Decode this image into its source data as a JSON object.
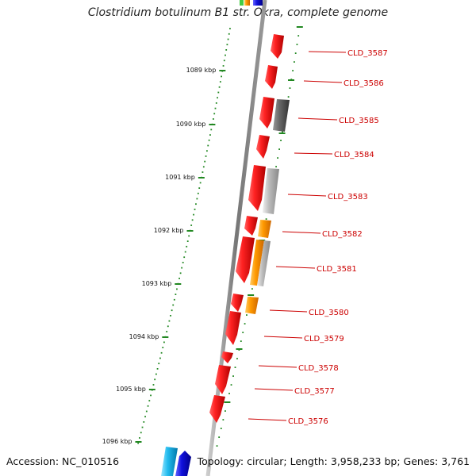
{
  "title": "Clostridium botulinum B1 str. Okra, complete genome",
  "footer": {
    "accession": "Accession: NC_010516",
    "summary": "Topology: circular; Length: 3,958,233 bp; Genes: 3,761"
  },
  "colors": {
    "gene_red": "#ee1111",
    "gene_orange": "#ff8800",
    "gene_gray": "#888888",
    "gene_darkgray": "#555555",
    "gene_cyan": "#22bbee",
    "gene_blue": "#1111cc",
    "tick_green": "#228822",
    "label_red": "#cc0000"
  },
  "kbp_ticks": [
    {
      "label": "1089 kbp"
    },
    {
      "label": "1090 kbp"
    },
    {
      "label": "1091 kbp"
    },
    {
      "label": "1092 kbp"
    },
    {
      "label": "1093 kbp"
    },
    {
      "label": "1094 kbp"
    },
    {
      "label": "1095 kbp"
    },
    {
      "label": "1096 kbp"
    }
  ],
  "gene_labels": [
    {
      "label": "CLD_3587"
    },
    {
      "label": "CLD_3586"
    },
    {
      "label": "CLD_3585"
    },
    {
      "label": "CLD_3584"
    },
    {
      "label": "CLD_3583"
    },
    {
      "label": "CLD_3582"
    },
    {
      "label": "CLD_3581"
    },
    {
      "label": "CLD_3580"
    },
    {
      "label": "CLD_3579"
    },
    {
      "label": "CLD_3578"
    },
    {
      "label": "CLD_3577"
    },
    {
      "label": "CLD_3576"
    }
  ]
}
